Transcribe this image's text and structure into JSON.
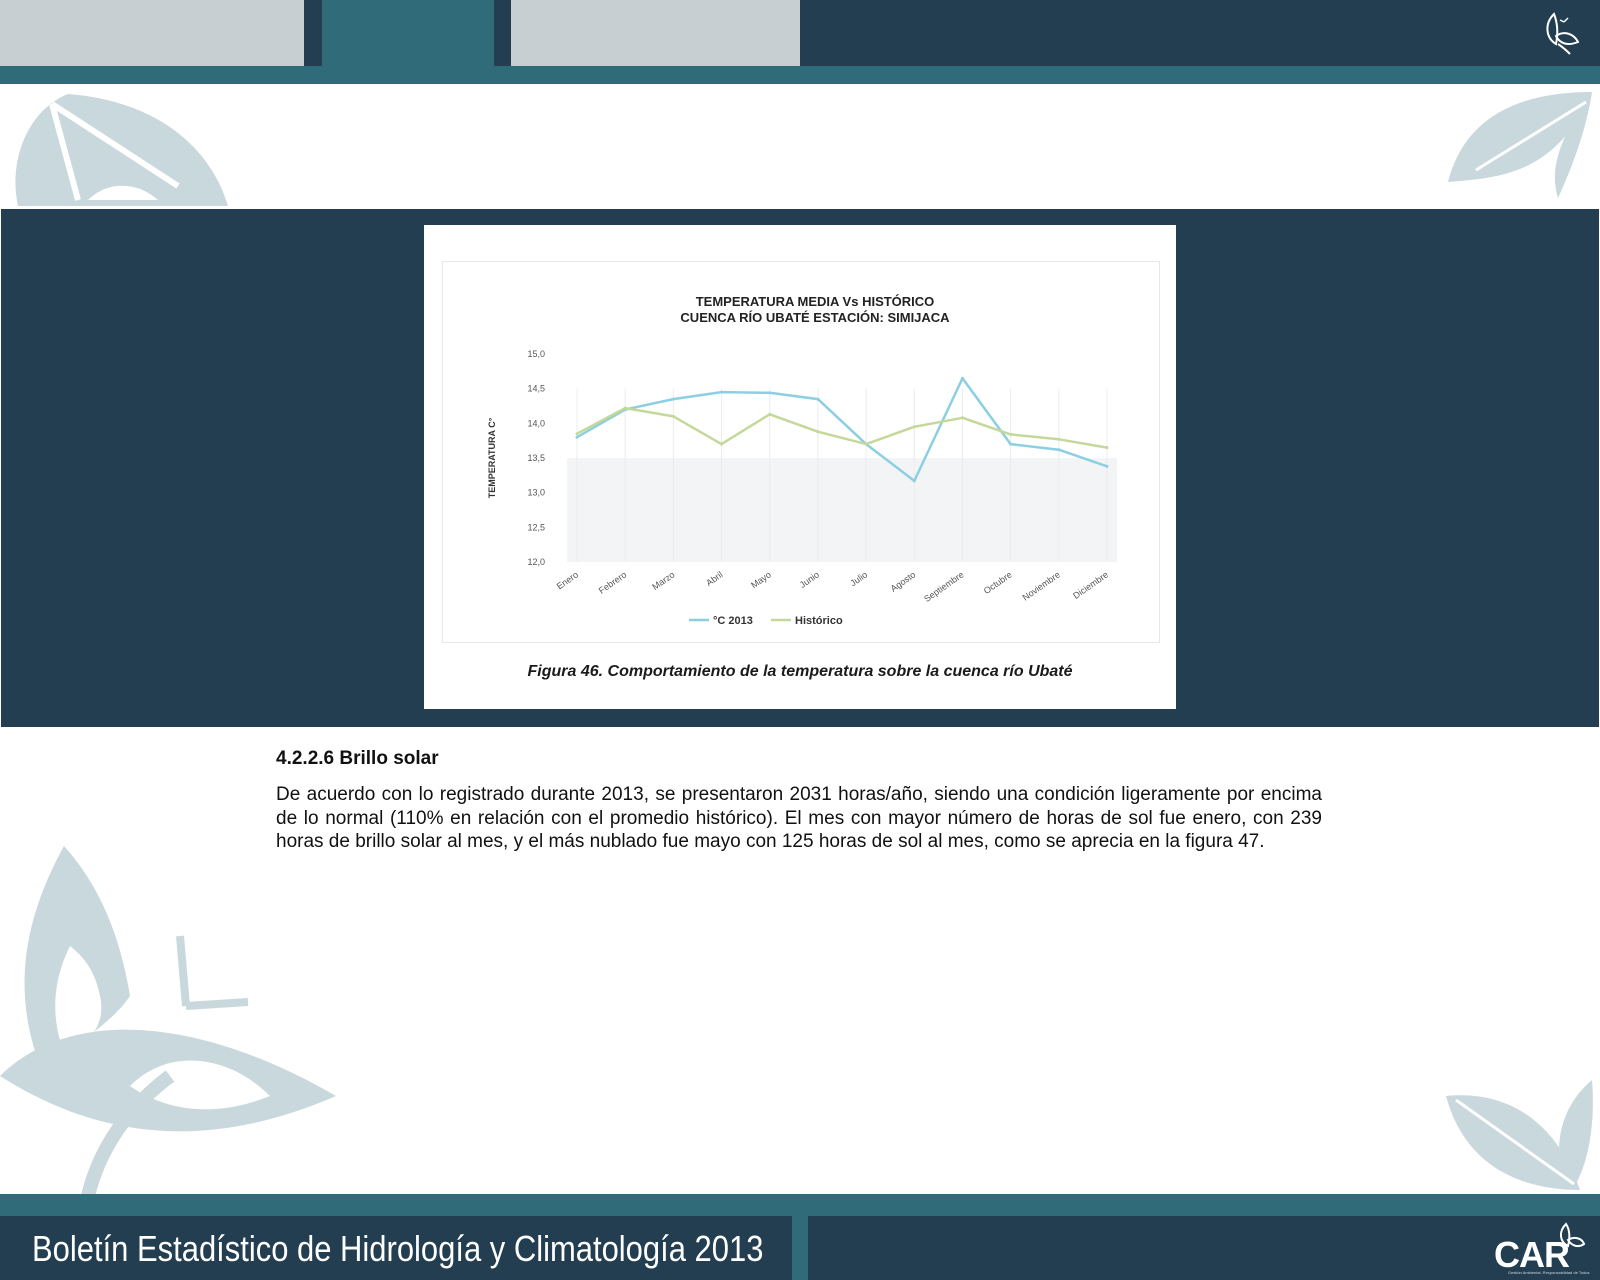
{
  "header": {
    "tabs": [
      "",
      "",
      ""
    ],
    "logo_icon": "butterfly-leaf-logo-icon"
  },
  "figure": {
    "caption": "Figura 46. Comportamiento de la temperatura sobre la cuenca río Ubaté"
  },
  "chart_data": {
    "type": "line",
    "title": "TEMPERATURA MEDIA Vs HISTÓRICO",
    "subtitle": "CUENCA RÍO UBATÉ ESTACIÓN: SIMIJACA",
    "xlabel": "",
    "ylabel": "TEMPERATURA C°",
    "categories": [
      "Enero",
      "Febrero",
      "Marzo",
      "Abril",
      "Mayo",
      "Junio",
      "Julio",
      "Agosto",
      "Septiembre",
      "Octubre",
      "Noviembre",
      "Diciembre"
    ],
    "ylim": [
      12.0,
      15.0
    ],
    "yticks": [
      "15,0",
      "14,5",
      "14,0",
      "13,5",
      "13,0",
      "12,5",
      "12,0"
    ],
    "series": [
      {
        "name": "°C 2013",
        "color": "#8ccfe3",
        "values": [
          13.8,
          14.2,
          14.35,
          14.45,
          14.44,
          14.35,
          13.7,
          13.17,
          14.65,
          13.7,
          13.62,
          13.38
        ]
      },
      {
        "name": "Histórico",
        "color": "#c4d89a",
        "values": [
          13.85,
          14.22,
          14.1,
          13.7,
          14.13,
          13.88,
          13.7,
          13.95,
          14.08,
          13.84,
          13.77,
          13.65
        ]
      }
    ],
    "legend": "bottom",
    "grid": false
  },
  "section": {
    "title": "4.2.2.6 Brillo solar",
    "paragraph": "De acuerdo con lo registrado durante 2013, se presentaron 2031 horas/año, siendo una condición ligeramente por encima de lo normal (110% en relación con el promedio histórico). El mes con mayor número de horas de sol fue enero, con 239 horas de brillo solar al mes, y el más nublado fue mayo con 125 horas de sol al mes, como se aprecia en la figura 47."
  },
  "footer": {
    "title": "Boletín Estadístico de Hidrología y Climatología 2013",
    "logo_text": "CAR",
    "logo_subtext": "Gestión Ambiental, Responsabilidad de Todos"
  },
  "colors": {
    "navy": "#223e50",
    "teal": "#2f6b78",
    "light_gray": "#c8cfd3",
    "leaf": "#c9d8dc"
  }
}
